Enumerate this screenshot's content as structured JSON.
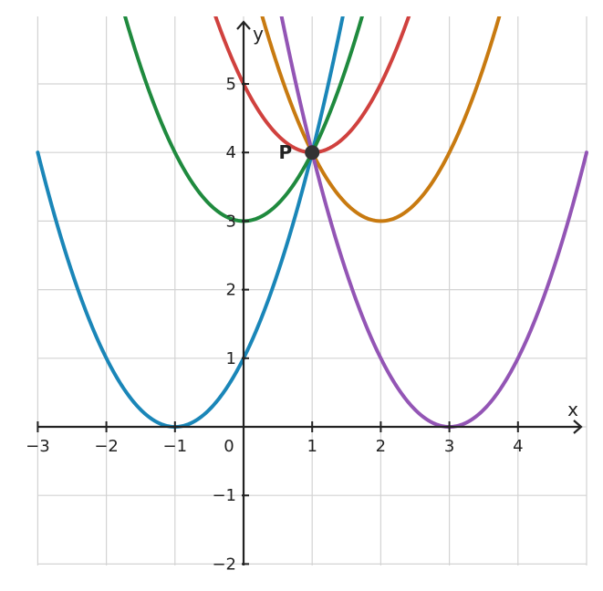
{
  "chart_data": {
    "type": "line",
    "title": "",
    "xlabel": "x",
    "ylabel": "y",
    "xlim": [
      -3,
      5
    ],
    "ylim": [
      -2,
      6
    ],
    "grid": true,
    "x_ticks": [
      {
        "value": -3,
        "label": "−3"
      },
      {
        "value": -2,
        "label": "−2"
      },
      {
        "value": -1,
        "label": "−1"
      },
      {
        "value": 1,
        "label": "1"
      },
      {
        "value": 2,
        "label": "2"
      },
      {
        "value": 3,
        "label": "3"
      },
      {
        "value": 4,
        "label": "4"
      }
    ],
    "y_ticks": [
      {
        "value": -2,
        "label": "−2"
      },
      {
        "value": -1,
        "label": "−1"
      },
      {
        "value": 1,
        "label": "1"
      },
      {
        "value": 2,
        "label": "2"
      },
      {
        "value": 3,
        "label": "3"
      },
      {
        "value": 4,
        "label": "4"
      },
      {
        "value": 5,
        "label": "5"
      }
    ],
    "origin_label": "0",
    "series": [
      {
        "equation": "y = (x + 1)^2",
        "a": 1,
        "h": -1,
        "k": 0,
        "color": "#1a86b8"
      },
      {
        "equation": "y = x^2 + 3",
        "a": 1,
        "h": 0,
        "k": 3,
        "color": "#1f8a3e"
      },
      {
        "equation": "y = (x − 1)^2 + 4",
        "a": 1,
        "h": 1,
        "k": 4,
        "color": "#d0413e"
      },
      {
        "equation": "y = (x − 2)^2 + 3",
        "a": 1,
        "h": 2,
        "k": 3,
        "color": "#c87a10"
      },
      {
        "equation": "y = (x − 3)^2",
        "a": 1,
        "h": 3,
        "k": 0,
        "color": "#9355b5"
      }
    ],
    "points": [
      {
        "label": "P",
        "x": 1,
        "y": 4,
        "color": "#333333"
      }
    ]
  }
}
